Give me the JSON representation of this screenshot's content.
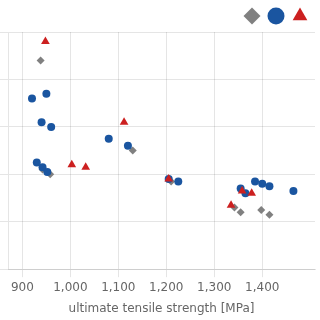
{
  "chart_data": {
    "type": "scatter",
    "x_label": "ultimate tensile strength [MPa]",
    "xlim": [
      870,
      1510
    ],
    "xticks": [
      900,
      1000,
      1100,
      1200,
      1300,
      1400
    ],
    "ylim": [
      0,
      100
    ],
    "yticks": [
      0,
      20,
      40,
      60,
      80,
      100
    ],
    "tick_labels": "x",
    "grid": true,
    "legend": "upper right",
    "series": [
      {
        "color": "#808080",
        "marker": "diamond",
        "x": [
          938,
          942,
          958,
          1130,
          1210,
          1342,
          1355,
          1398,
          1415
        ],
        "values": [
          88,
          42,
          40,
          50,
          37,
          26,
          24,
          25,
          23
        ]
      },
      {
        "color": "#1a55a0",
        "marker": "circle",
        "x": [
          920,
          950,
          940,
          960,
          930,
          942,
          952,
          1080,
          1120,
          1205,
          1225,
          1355,
          1365,
          1385,
          1400,
          1415,
          1465
        ],
        "values": [
          72,
          74,
          62,
          60,
          45,
          43,
          41,
          55,
          52,
          38,
          37,
          34,
          32,
          37,
          36,
          35,
          33
        ]
      },
      {
        "color": "#cc2020",
        "marker": "triangle",
        "x": [
          948,
          1003,
          1032,
          1112,
          1205,
          1358,
          1378,
          1335
        ],
        "values": [
          96,
          44,
          43,
          62,
          38,
          33,
          32,
          27
        ]
      }
    ]
  }
}
